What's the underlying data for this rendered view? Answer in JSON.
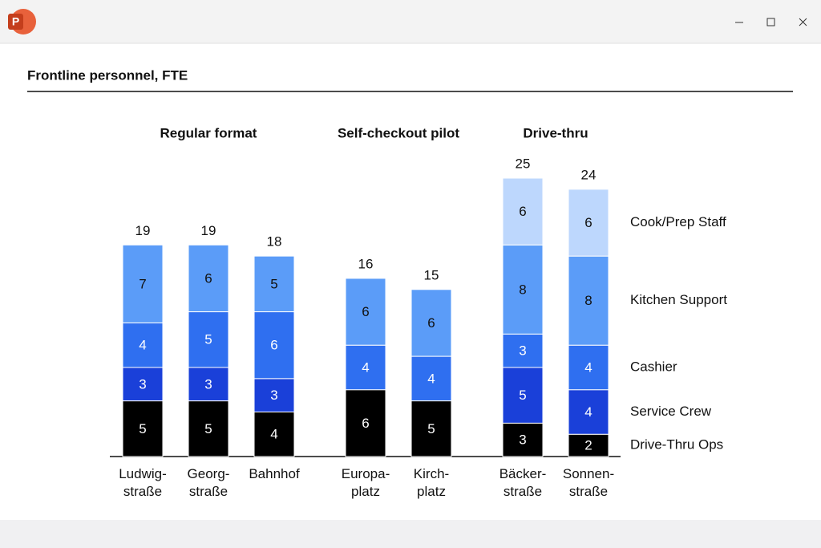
{
  "app_icon_letter": "P",
  "chart_data": {
    "type": "stacked-bar",
    "title": "Frontline personnel, FTE",
    "groups": [
      {
        "label": "Regular format",
        "categories": [
          "Ludwig-\nstraße",
          "Georg-\nstraße",
          "Bahnhof"
        ]
      },
      {
        "label": "Self-checkout pilot",
        "categories": [
          "Europa-\nplatz",
          "Kirch-\nplatz"
        ]
      },
      {
        "label": "Drive-thru",
        "categories": [
          "Bäcker-\nstraße",
          "Sonnen-\nstraße"
        ]
      }
    ],
    "series": [
      {
        "name": "Drive-Thru Ops",
        "color": "#000000",
        "values": [
          5,
          5,
          4,
          6,
          5,
          3,
          2
        ]
      },
      {
        "name": "Service Crew",
        "color": "#1a40d9",
        "values": [
          3,
          3,
          3,
          null,
          null,
          5,
          4
        ]
      },
      {
        "name": "Cashier",
        "color": "#2f6ff0",
        "values": [
          4,
          5,
          6,
          4,
          4,
          3,
          4
        ]
      },
      {
        "name": "Kitchen Support",
        "color": "#5b9cf8",
        "values": [
          7,
          6,
          5,
          6,
          6,
          8,
          8
        ]
      },
      {
        "name": "Cook/Prep Staff",
        "color": "#bdd7fd",
        "values": [
          null,
          null,
          null,
          null,
          null,
          6,
          6
        ]
      }
    ],
    "totals": [
      19,
      19,
      18,
      16,
      15,
      25,
      24
    ]
  }
}
